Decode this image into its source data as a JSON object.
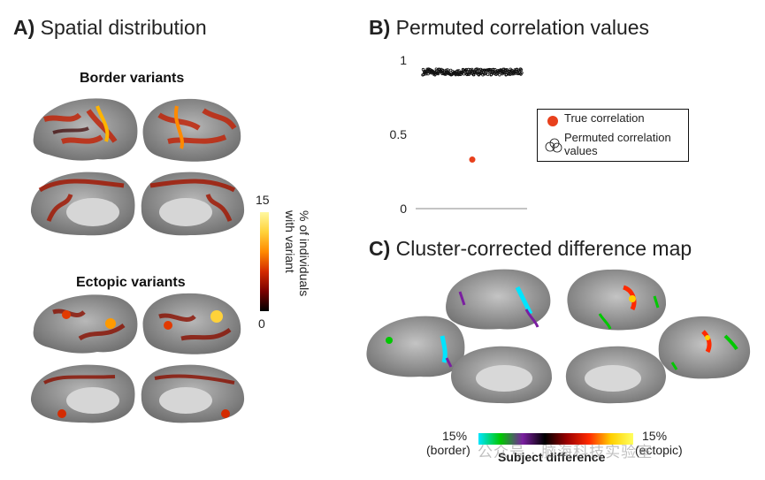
{
  "panel_a": {
    "letter": "A)",
    "title": "Spatial distribution",
    "border_label": "Border variants",
    "ectopic_label": "Ectopic variants",
    "colorbar": {
      "max_label": "15",
      "min_label": "0",
      "axis_label_line1": "% of individuals",
      "axis_label_line2": "with variant",
      "colors": [
        "#000000",
        "#7a0000",
        "#d42b00",
        "#ff8a00",
        "#ffd23a",
        "#fff8a0"
      ]
    }
  },
  "panel_b": {
    "letter": "B)",
    "title": "Permuted correlation values",
    "y_ticks": [
      "1",
      "0.5",
      "0"
    ],
    "legend": {
      "true_label": "True correlation",
      "perm_label_line1": "Permuted correlation",
      "perm_label_line2": "values"
    },
    "colors": {
      "true": "#e8401c",
      "permuted": "#111111"
    }
  },
  "chart_data": {
    "type": "scatter",
    "title": "Permuted correlation values",
    "ylim": [
      0,
      1
    ],
    "yticks": [
      0,
      0.5,
      1
    ],
    "series": [
      {
        "name": "True correlation",
        "values": [
          0.33
        ]
      },
      {
        "name": "Permuted correlation values",
        "value_range": [
          0.9,
          0.94
        ]
      }
    ]
  },
  "panel_c": {
    "letter": "C)",
    "title": "Cluster-corrected difference map",
    "colorbar": {
      "left_pct": "15%",
      "left_label": "(border)",
      "right_pct": "15%",
      "right_label": "(ectopic)",
      "center_label": "Subject difference",
      "colors": [
        "#00e5ff",
        "#00c800",
        "#7a1fa0",
        "#000000",
        "#9a0000",
        "#ff2a00",
        "#ffd000",
        "#ffff60"
      ]
    }
  },
  "watermark": "公众号 · 脑海科技实验室"
}
